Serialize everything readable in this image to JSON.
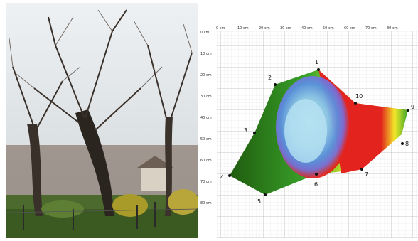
{
  "photo": {
    "subject": "trees",
    "sky_color": "#dfe3e6",
    "grass_color": "#3f6b2a"
  },
  "tomogram": {
    "x_ticks": [
      "0 cm",
      "10 cm",
      "20 cm",
      "30 cm",
      "40 cm",
      "50 cm",
      "60 cm",
      "70 cm",
      "80 cm"
    ],
    "y_ticks": [
      "0 cm",
      "10 cm",
      "20 cm",
      "30 cm",
      "40 cm",
      "50 cm",
      "60 cm",
      "70 cm",
      "80 cm"
    ],
    "points": [
      "1",
      "2",
      "3",
      "4",
      "5",
      "6",
      "7",
      "8",
      "9",
      "10"
    ],
    "colors": {
      "sound": "#1f5b0f",
      "green": "#3aa52a",
      "yellow": "#f1e92a",
      "red": "#e3231d",
      "violet": "#7a6dd8",
      "blue": "#5aa0df",
      "light_blue": "#a9dcf0",
      "grid": "#c9c9c9"
    }
  }
}
